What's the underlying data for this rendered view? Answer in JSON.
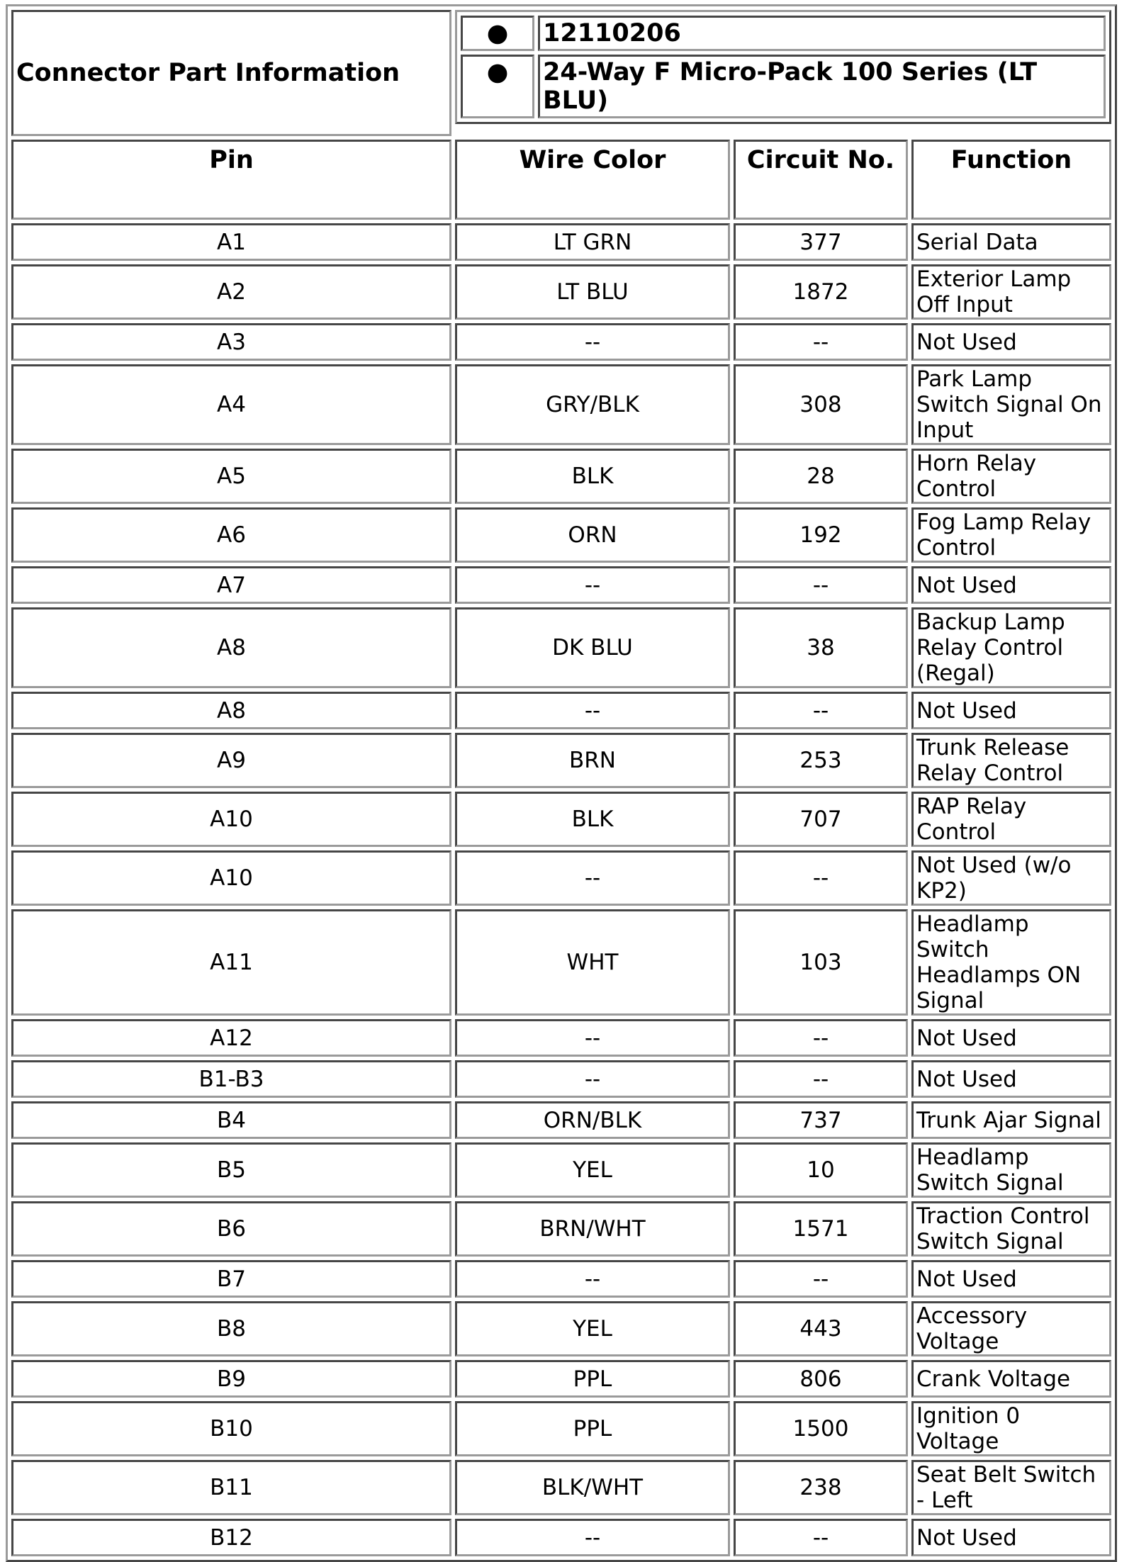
{
  "header": {
    "title": "Connector Part Information",
    "info": [
      {
        "bullet": "●",
        "text": "12110206"
      },
      {
        "bullet": "●",
        "text": "24-Way F Micro-Pack 100 Series (LT BLU)"
      }
    ]
  },
  "columns": [
    "Pin",
    "Wire Color",
    "Circuit No.",
    "Function"
  ],
  "rows": [
    [
      "A1",
      "LT GRN",
      "377",
      "Serial Data"
    ],
    [
      "A2",
      "LT BLU",
      "1872",
      "Exterior Lamp Off Input"
    ],
    [
      "A3",
      "--",
      "--",
      "Not Used"
    ],
    [
      "A4",
      "GRY/BLK",
      "308",
      "Park Lamp Switch Signal On Input"
    ],
    [
      "A5",
      "BLK",
      "28",
      "Horn Relay Control"
    ],
    [
      "A6",
      "ORN",
      "192",
      "Fog Lamp Relay Control"
    ],
    [
      "A7",
      "--",
      "--",
      "Not Used"
    ],
    [
      "A8",
      "DK BLU",
      "38",
      "Backup Lamp Relay Control (Regal)"
    ],
    [
      "A8",
      "--",
      "--",
      "Not Used"
    ],
    [
      "A9",
      "BRN",
      "253",
      "Trunk Release Relay Control"
    ],
    [
      "A10",
      "BLK",
      "707",
      "RAP Relay Control"
    ],
    [
      "A10",
      "--",
      "--",
      "Not Used (w/o KP2)"
    ],
    [
      "A11",
      "WHT",
      "103",
      "Headlamp Switch Headlamps ON Signal"
    ],
    [
      "A12",
      "--",
      "--",
      "Not Used"
    ],
    [
      "B1-B3",
      "--",
      "--",
      "Not Used"
    ],
    [
      "B4",
      "ORN/BLK",
      "737",
      "Trunk Ajar Signal"
    ],
    [
      "B5",
      "YEL",
      "10",
      "Headlamp Switch Signal"
    ],
    [
      "B6",
      "BRN/WHT",
      "1571",
      "Traction Control Switch Signal"
    ],
    [
      "B7",
      "--",
      "--",
      "Not Used"
    ],
    [
      "B8",
      "YEL",
      "443",
      "Accessory Voltage"
    ],
    [
      "B9",
      "PPL",
      "806",
      "Crank Voltage"
    ],
    [
      "B10",
      "PPL",
      "1500",
      "Ignition 0 Voltage"
    ],
    [
      "B11",
      "BLK/WHT",
      "238",
      "Seat Belt Switch - Left"
    ],
    [
      "B12",
      "--",
      "--",
      "Not Used"
    ]
  ]
}
